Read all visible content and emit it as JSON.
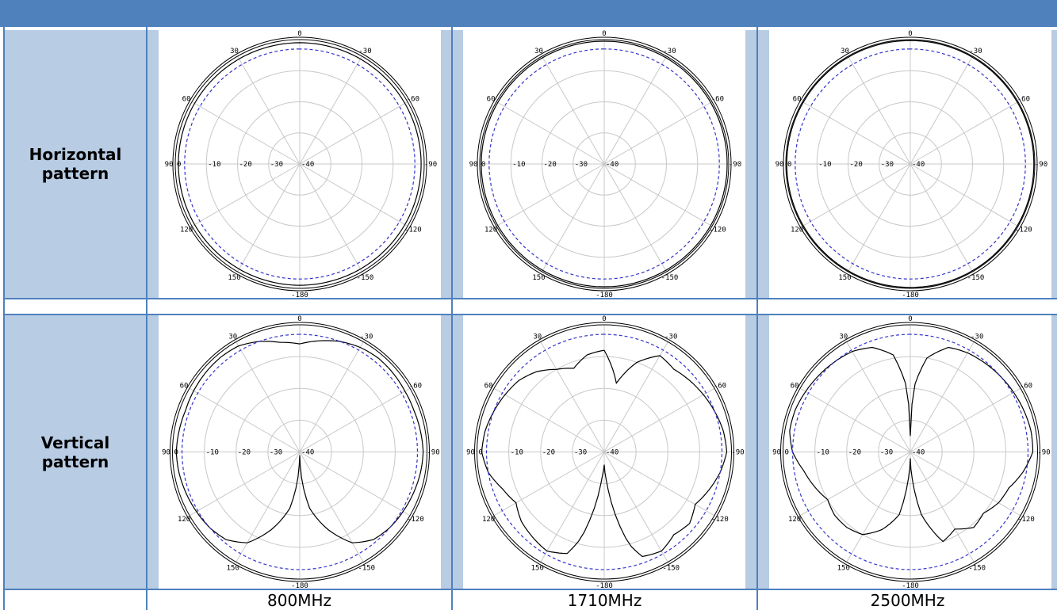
{
  "header": {
    "title": ""
  },
  "rows": [
    {
      "label_line1": "Horizontal",
      "label_line2": "pattern"
    },
    {
      "label_line1": "Vertical",
      "label_line2": "pattern"
    }
  ],
  "frequencies": [
    "800MHz",
    "1710MHz",
    "2500MHz"
  ],
  "colors": {
    "header": "#4f81bd",
    "label_bg": "#b8cce4",
    "reference": "#3333cc",
    "trace": "#000000",
    "grid": "#c8c8c8"
  },
  "chart_data": [
    {
      "type": "line",
      "subtype": "polar",
      "row": "Horizontal pattern",
      "frequency": "800MHz",
      "angle_labels": [
        "0",
        "30",
        "60",
        "90",
        "120",
        "150",
        "-180",
        "-150",
        "-120",
        "-90",
        "-60",
        "-30"
      ],
      "radial_labels": [
        "0",
        "-10",
        "-20",
        "-30",
        "-40"
      ],
      "rlim": [
        -40,
        0
      ],
      "series": [
        {
          "angles": [
            0,
            30,
            60,
            90,
            120,
            150,
            180,
            -150,
            -120,
            -90,
            -60,
            -30
          ],
          "values": [
            -1,
            -1,
            -1,
            -1,
            -1,
            -1,
            -1,
            -1,
            -1,
            -1,
            -1,
            -1
          ]
        },
        {
          "style": "dashed",
          "angles": [
            0,
            90,
            180,
            -90
          ],
          "values": [
            -3,
            -3,
            -3,
            -3
          ]
        }
      ]
    },
    {
      "type": "line",
      "subtype": "polar",
      "row": "Horizontal pattern",
      "frequency": "1710MHz",
      "angle_labels": [
        "0",
        "30",
        "60",
        "90",
        "120",
        "150",
        "-180",
        "-150",
        "-120",
        "-90",
        "-60",
        "-30"
      ],
      "radial_labels": [
        "0",
        "-10",
        "-20",
        "-30",
        "-40"
      ],
      "rlim": [
        -40,
        0
      ],
      "series": [
        {
          "angles": [
            0,
            30,
            60,
            90,
            120,
            150,
            180,
            -150,
            -120,
            -90,
            -60,
            -30
          ],
          "values": [
            -0.5,
            -0.5,
            -0.5,
            -0.5,
            -0.5,
            -0.5,
            -0.5,
            -0.5,
            -0.5,
            -0.5,
            -0.5,
            -0.5
          ]
        },
        {
          "style": "dashed",
          "angles": [
            0,
            90,
            180,
            -90
          ],
          "values": [
            -3,
            -3,
            -3,
            -3
          ]
        }
      ]
    },
    {
      "type": "line",
      "subtype": "polar",
      "row": "Horizontal pattern",
      "frequency": "2500MHz",
      "angle_labels": [
        "0",
        "30",
        "60",
        "90",
        "120",
        "150",
        "-180",
        "-150",
        "-120",
        "-90",
        "-60",
        "-30"
      ],
      "radial_labels": [
        "0",
        "-10",
        "-20",
        "-30",
        "-40"
      ],
      "rlim": [
        -40,
        0
      ],
      "series": [
        {
          "angles": [
            0,
            30,
            60,
            90,
            120,
            150,
            180,
            -150,
            -120,
            -90,
            -60,
            -30
          ],
          "values": [
            -0.3,
            -0.3,
            -0.3,
            -0.3,
            -0.3,
            -0.3,
            -0.3,
            -0.3,
            -0.3,
            -0.3,
            -0.3,
            -0.3
          ]
        },
        {
          "style": "dashed",
          "angles": [
            0,
            90,
            180,
            -90
          ],
          "values": [
            -3,
            -3,
            -3,
            -3
          ]
        }
      ]
    },
    {
      "type": "line",
      "subtype": "polar",
      "row": "Vertical pattern",
      "frequency": "800MHz",
      "angle_labels": [
        "0",
        "30",
        "60",
        "90",
        "120",
        "150",
        "-180",
        "-150",
        "-120",
        "-90",
        "-60",
        "-30"
      ],
      "radial_labels": [
        "0",
        "-10",
        "-20",
        "-30",
        "-40"
      ],
      "rlim": [
        -40,
        0
      ],
      "series": [
        {
          "angles": [
            0,
            10,
            20,
            30,
            40,
            50,
            60,
            70,
            80,
            90,
            100,
            110,
            120,
            130,
            140,
            150,
            160,
            170,
            175,
            178,
            180,
            182,
            185,
            190,
            200,
            210,
            220,
            230,
            240,
            250,
            260,
            270,
            280,
            290,
            300,
            310,
            320,
            330,
            340,
            350
          ],
          "values": [
            -6,
            -5,
            -3,
            -1.5,
            -1.2,
            -1.3,
            -1.5,
            -1.8,
            -1.5,
            -1.2,
            -1.5,
            -2,
            -2.5,
            -3,
            -4,
            -7,
            -14,
            -22,
            -30,
            -36,
            -39,
            -36,
            -30,
            -22,
            -14,
            -7,
            -4,
            -3,
            -2.5,
            -2,
            -1.5,
            -1.2,
            -1.5,
            -1.8,
            -1.8,
            -1.6,
            -1.5,
            -2,
            -3,
            -4.5
          ]
        },
        {
          "style": "dashed",
          "angles": [
            0,
            90,
            180,
            -90
          ],
          "values": [
            -3,
            -3,
            -3,
            -3
          ]
        }
      ]
    },
    {
      "type": "line",
      "subtype": "polar",
      "row": "Vertical pattern",
      "frequency": "1710MHz",
      "angle_labels": [
        "0",
        "30",
        "60",
        "90",
        "120",
        "150",
        "-180",
        "-150",
        "-120",
        "-90",
        "-60",
        "-30"
      ],
      "radial_labels": [
        "0",
        "-10",
        "-20",
        "-30",
        "-40"
      ],
      "rlim": [
        -40,
        0
      ],
      "series": [
        {
          "angles": [
            0,
            10,
            20,
            30,
            40,
            50,
            60,
            70,
            80,
            90,
            100,
            110,
            120,
            130,
            140,
            150,
            160,
            165,
            170,
            175,
            180,
            185,
            190,
            195,
            200,
            210,
            220,
            230,
            240,
            250,
            260,
            270,
            280,
            290,
            300,
            310,
            320,
            330,
            340,
            350
          ],
          "values": [
            -8,
            -9,
            -12,
            -10,
            -7,
            -5,
            -4,
            -3,
            -2,
            -1.5,
            -3,
            -6,
            -8,
            -6,
            -5,
            -4,
            -6,
            -12,
            -22,
            -32,
            -36,
            -30,
            -20,
            -10,
            -5,
            -4,
            -6,
            -5,
            -7,
            -5,
            -3,
            -1.5,
            -2,
            -3,
            -4,
            -5,
            -6,
            -5,
            -10,
            -18
          ]
        },
        {
          "style": "dashed",
          "angles": [
            0,
            90,
            180,
            -90
          ],
          "values": [
            -3,
            -3,
            -3,
            -3
          ]
        }
      ]
    },
    {
      "type": "line",
      "subtype": "polar",
      "row": "Vertical pattern",
      "frequency": "2500MHz",
      "angle_labels": [
        "0",
        "30",
        "60",
        "90",
        "120",
        "150",
        "-180",
        "-150",
        "-120",
        "-90",
        "-60",
        "-30"
      ],
      "radial_labels": [
        "0",
        "-10",
        "-20",
        "-30",
        "-40"
      ],
      "rlim": [
        -40,
        0
      ],
      "series": [
        {
          "angles": [
            0,
            3,
            10,
            20,
            30,
            40,
            50,
            60,
            70,
            80,
            90,
            100,
            110,
            120,
            130,
            140,
            150,
            160,
            170,
            175,
            180,
            185,
            190,
            200,
            210,
            220,
            230,
            240,
            250,
            260,
            270,
            280,
            290,
            300,
            310,
            320,
            330,
            340,
            350,
            357
          ],
          "values": [
            -35,
            -20,
            -9,
            -5,
            -3.5,
            -3,
            -2.5,
            -2,
            -1.5,
            -1.5,
            -3,
            -6,
            -8,
            -10,
            -9,
            -9,
            -10,
            -14,
            -20,
            -30,
            -38,
            -30,
            -20,
            -10,
            -12,
            -9,
            -10,
            -8,
            -7,
            -4,
            -1.5,
            -1.5,
            -2,
            -2.5,
            -3,
            -3.5,
            -4,
            -5,
            -10,
            -20
          ]
        },
        {
          "style": "dashed",
          "angles": [
            0,
            90,
            180,
            -90
          ],
          "values": [
            -3,
            -3,
            -3,
            -3
          ]
        }
      ]
    }
  ]
}
